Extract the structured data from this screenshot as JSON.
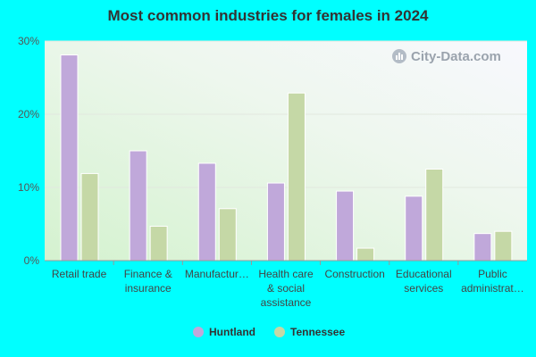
{
  "chart_data": {
    "type": "bar",
    "title": "Most common industries for females in 2024",
    "categories": [
      [
        "Retail trade"
      ],
      [
        "Finance &",
        "insurance"
      ],
      [
        "Manufactur…"
      ],
      [
        "Health care",
        "& social",
        "assistance"
      ],
      [
        "Construction"
      ],
      [
        "Educational",
        "services"
      ],
      [
        "Public",
        "administrat…"
      ]
    ],
    "series": [
      {
        "name": "Huntland",
        "color": "#c0a8da",
        "values": [
          28.1,
          15.0,
          13.3,
          10.6,
          9.5,
          8.8,
          3.7
        ]
      },
      {
        "name": "Tennessee",
        "color": "#c5d8a6",
        "values": [
          11.9,
          4.7,
          7.1,
          22.9,
          1.7,
          12.5,
          4.0
        ]
      }
    ],
    "ylim": [
      0,
      30
    ],
    "yticks": [
      "0%",
      "10%",
      "20%",
      "30%"
    ],
    "grid": true,
    "legend": "bottom-center",
    "watermark": "City-Data.com"
  }
}
